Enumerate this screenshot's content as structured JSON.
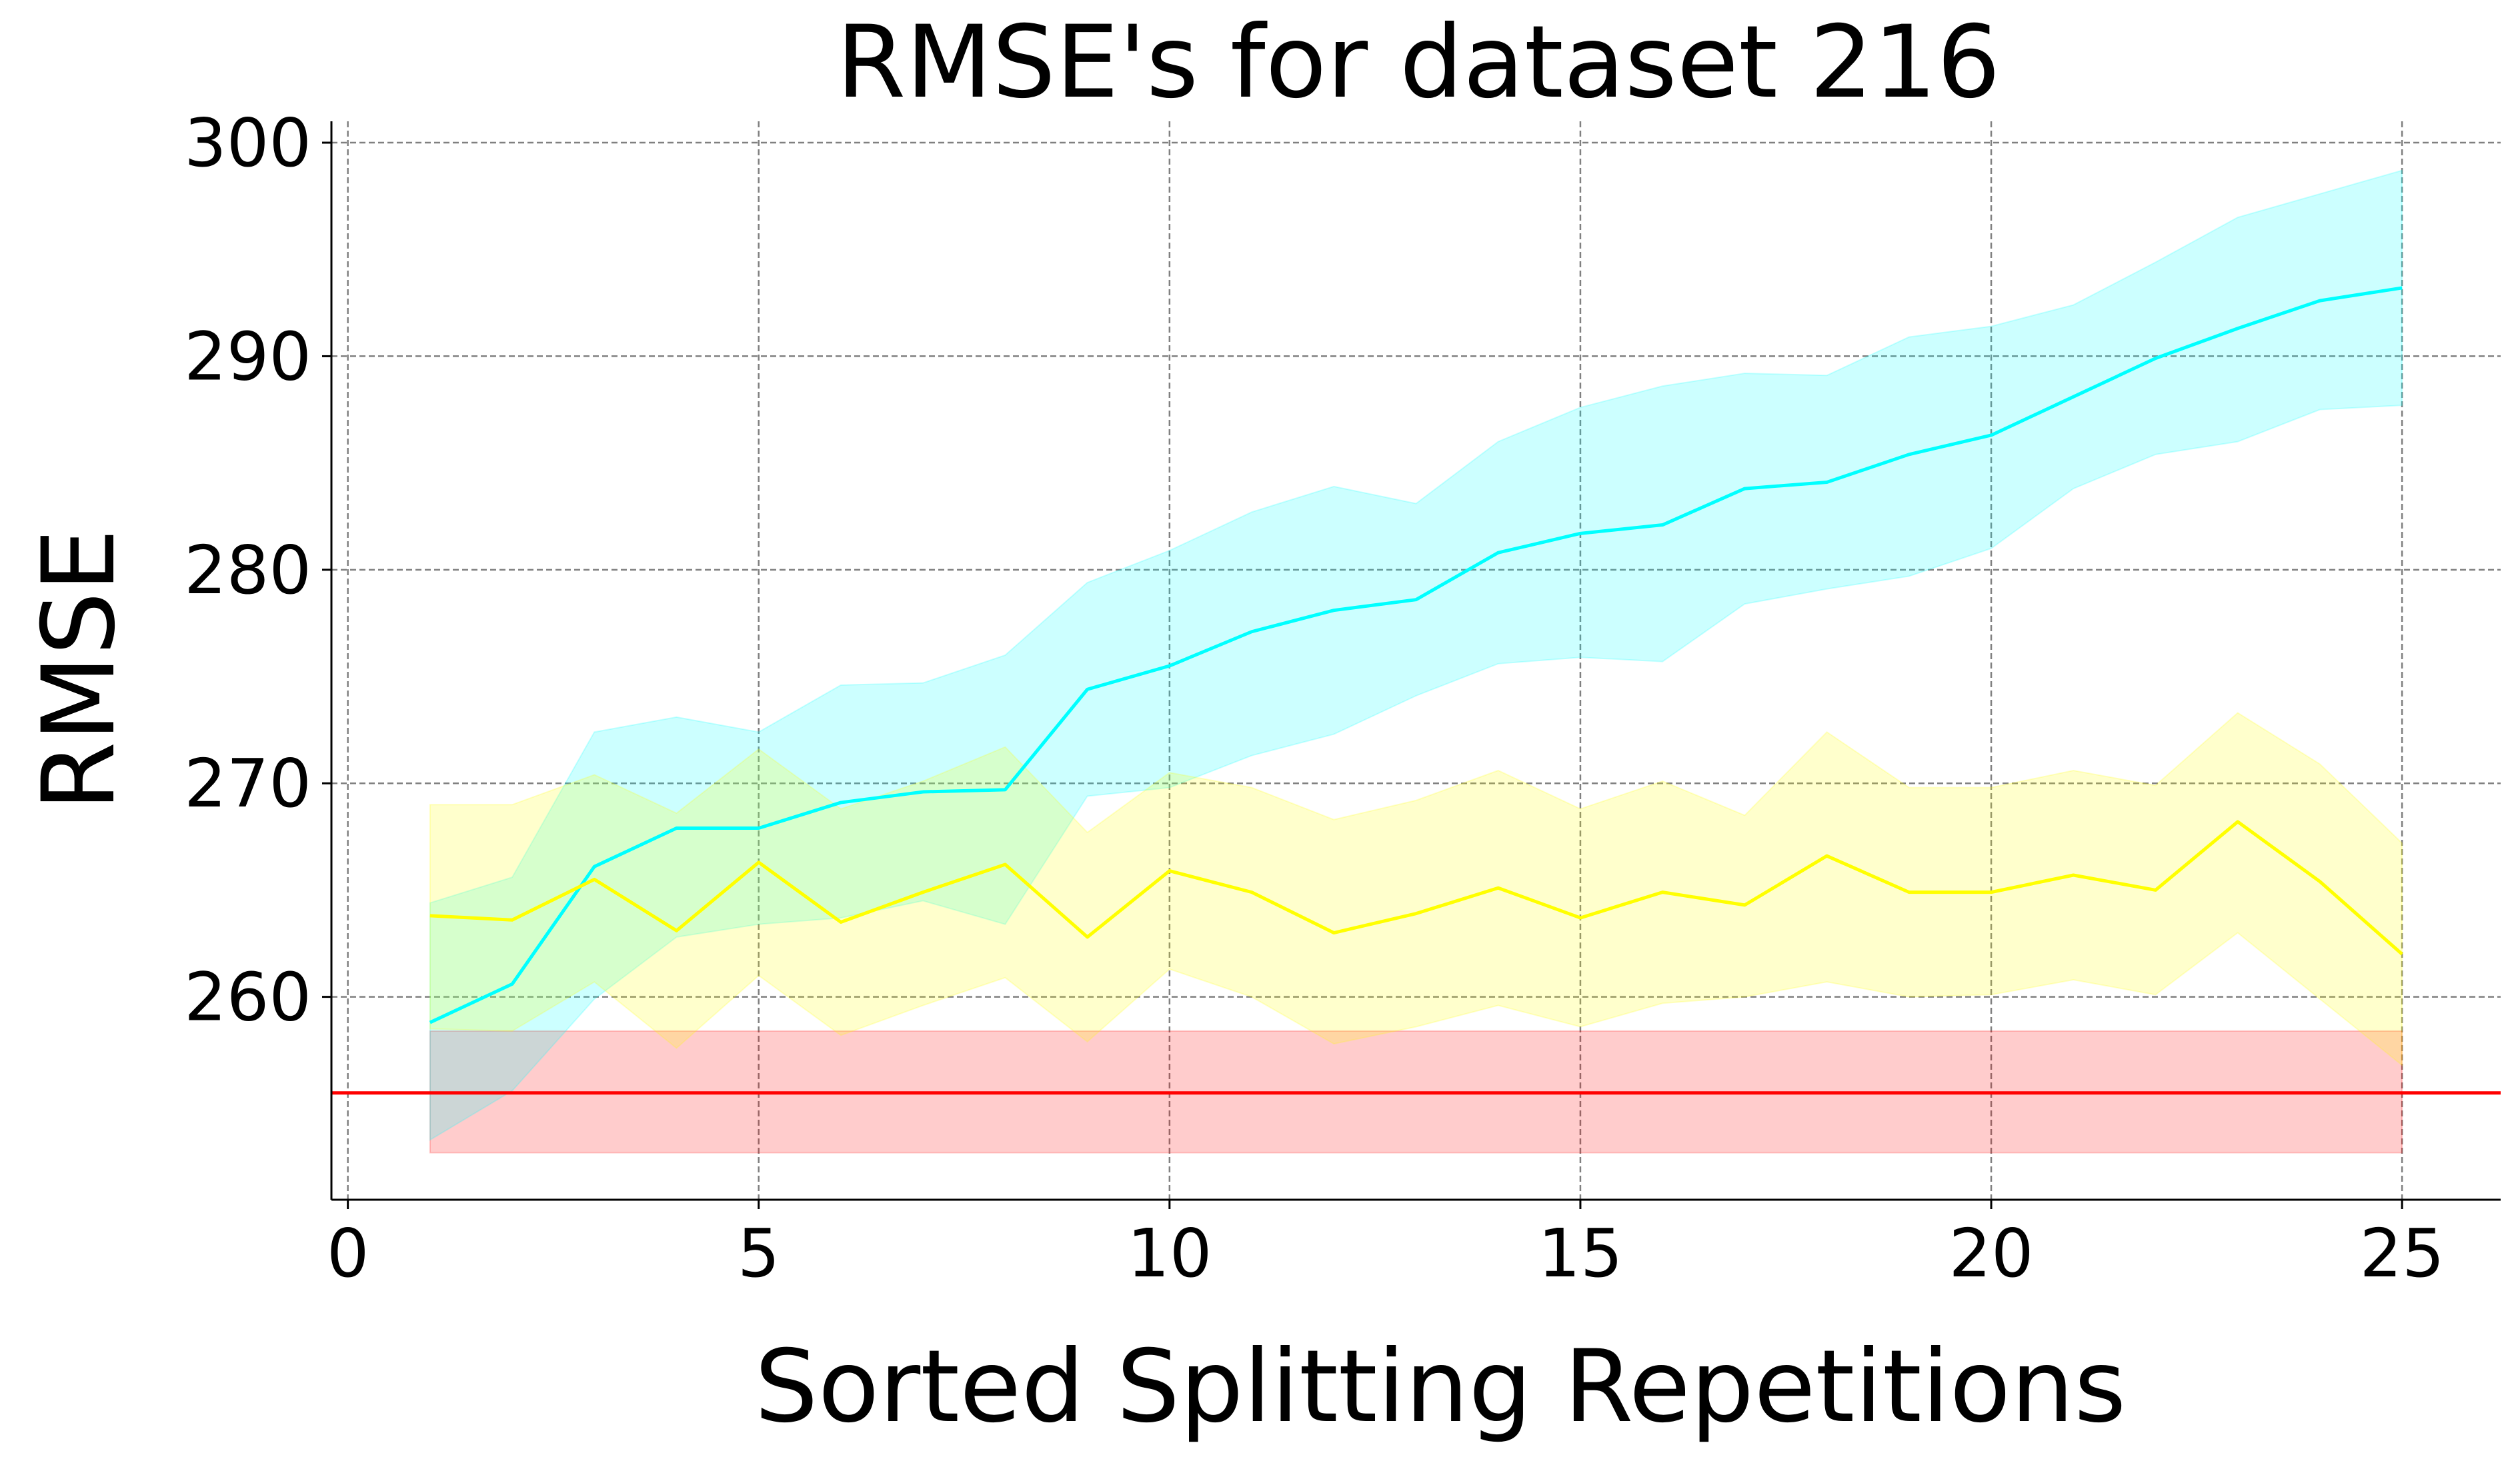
{
  "chart_data": {
    "type": "line",
    "title": "RMSE's for dataset 216",
    "xlabel": "Sorted Splitting Repetitions",
    "ylabel": "RMSE",
    "xlim": [
      -0.2,
      26.2
    ],
    "ylim": [
      250.5,
      301
    ],
    "x_ticks": [
      0,
      5,
      10,
      15,
      20,
      25
    ],
    "y_ticks": [
      260,
      270,
      280,
      290,
      300
    ],
    "grid": true,
    "legend": "none",
    "x": [
      1,
      2,
      3,
      4,
      5,
      6,
      7,
      8,
      9,
      10,
      11,
      12,
      13,
      14,
      15,
      16,
      17,
      18,
      19,
      20,
      21,
      22,
      23,
      24,
      25
    ],
    "series": [
      {
        "color": "#00ffff",
        "band_color": "#00ffff",
        "band_opacity": 0.2,
        "values": [
          258.8,
          260.6,
          266.1,
          267.9,
          267.9,
          269.1,
          269.6,
          269.7,
          274.4,
          275.5,
          277.1,
          278.1,
          278.6,
          280.8,
          281.7,
          282.1,
          283.8,
          284.1,
          285.4,
          286.3,
          288.1,
          289.9,
          291.3,
          292.6,
          293.2
        ],
        "lower": [
          253.3,
          255.6,
          259.9,
          262.8,
          263.4,
          263.7,
          264.5,
          263.4,
          269.4,
          269.8,
          271.3,
          272.3,
          274.1,
          275.6,
          275.9,
          275.7,
          278.4,
          279.1,
          279.7,
          281.0,
          283.8,
          285.4,
          286.0,
          287.5,
          287.7
        ],
        "upper": [
          264.4,
          265.6,
          272.4,
          273.1,
          272.4,
          274.6,
          274.7,
          276.0,
          279.4,
          280.9,
          282.7,
          283.9,
          283.1,
          286.0,
          287.6,
          288.6,
          289.2,
          289.1,
          290.9,
          291.4,
          292.4,
          294.4,
          296.5,
          297.6,
          298.7
        ]
      },
      {
        "color": "#ffff00",
        "band_color": "#ffff00",
        "band_opacity": 0.2,
        "values": [
          263.8,
          263.6,
          265.5,
          263.1,
          266.3,
          263.5,
          264.9,
          266.2,
          262.8,
          265.9,
          264.9,
          263.0,
          263.9,
          265.1,
          263.7,
          264.9,
          264.3,
          266.6,
          264.9,
          264.9,
          265.7,
          265.0,
          268.2,
          265.4,
          262.0
        ],
        "lower": [
          258.5,
          258.4,
          260.7,
          257.6,
          261.0,
          258.2,
          259.6,
          260.9,
          257.9,
          261.3,
          260.0,
          257.8,
          258.6,
          259.6,
          258.6,
          259.7,
          260.0,
          260.7,
          260.0,
          260.1,
          260.8,
          260.1,
          263.0,
          259.9,
          256.8
        ],
        "upper": [
          269.0,
          269.0,
          270.4,
          268.6,
          271.6,
          268.8,
          270.1,
          271.7,
          267.7,
          270.5,
          269.8,
          268.3,
          269.2,
          270.6,
          268.8,
          270.1,
          268.5,
          272.4,
          269.8,
          269.8,
          270.6,
          269.9,
          273.3,
          270.9,
          267.2
        ]
      }
    ],
    "reference": {
      "color": "#ff0000",
      "value": 255.5,
      "band_lower": 252.7,
      "band_upper": 258.4,
      "band_x_range": [
        1,
        25
      ],
      "band_opacity": 0.2
    }
  }
}
